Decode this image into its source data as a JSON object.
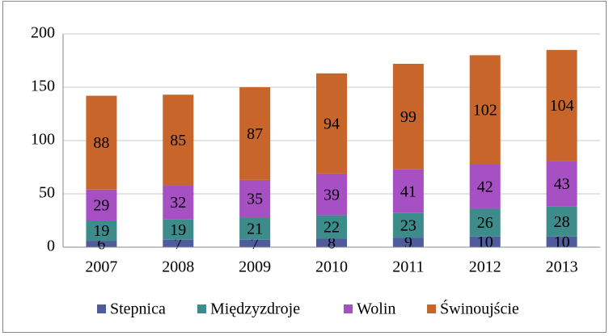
{
  "chart_data": {
    "type": "stacked_bar",
    "categories": [
      "2007",
      "2008",
      "2009",
      "2010",
      "2011",
      "2012",
      "2013"
    ],
    "series": [
      {
        "name": "Stepnica",
        "color": "#4e5b9c",
        "values": [
          6,
          7,
          7,
          8,
          9,
          10,
          10
        ]
      },
      {
        "name": "Międzyzdroje",
        "color": "#3e8b8c",
        "values": [
          19,
          19,
          21,
          22,
          23,
          26,
          28
        ]
      },
      {
        "name": "Wolin",
        "color": "#a650c4",
        "values": [
          29,
          32,
          35,
          39,
          41,
          42,
          43
        ]
      },
      {
        "name": "Świnoujście",
        "color": "#c8652b",
        "values": [
          88,
          85,
          87,
          94,
          99,
          102,
          104
        ]
      }
    ],
    "ylim": [
      0,
      200
    ],
    "yticks": [
      0,
      50,
      100,
      150,
      200
    ],
    "grid": true,
    "legend": "bottom"
  }
}
